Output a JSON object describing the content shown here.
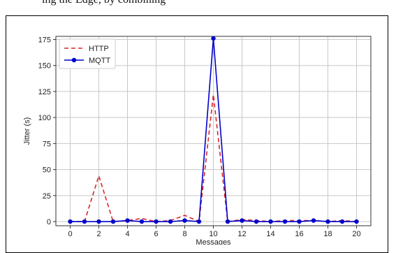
{
  "caption_fragment": "ing the Edge, by combining",
  "chart_data": {
    "type": "line",
    "x": [
      0,
      1,
      2,
      3,
      4,
      5,
      6,
      7,
      8,
      9,
      10,
      11,
      12,
      13,
      14,
      15,
      16,
      17,
      18,
      19,
      20
    ],
    "series": [
      {
        "name": "HTTP",
        "color": "#d62728",
        "style": "dashed",
        "marker": "none",
        "values": [
          0,
          0,
          44,
          0,
          1,
          3,
          0,
          1,
          6,
          0,
          122,
          0,
          2,
          1,
          0,
          1,
          1,
          1,
          0,
          1,
          0
        ]
      },
      {
        "name": "MQTT",
        "color": "#0000cc",
        "style": "solid",
        "marker": "circle",
        "values": [
          0,
          0,
          0,
          0,
          1,
          0,
          0,
          0,
          1,
          0,
          176,
          0,
          1,
          0,
          0,
          0,
          0,
          1,
          0,
          0,
          0
        ]
      }
    ],
    "xlabel": "Messages",
    "ylabel": "Jitter (s)",
    "xticks": [
      0,
      2,
      4,
      6,
      8,
      10,
      12,
      14,
      16,
      18,
      20
    ],
    "yticks": [
      0,
      25,
      50,
      75,
      100,
      125,
      150,
      175
    ],
    "xlim": [
      -1,
      21
    ],
    "ylim": [
      -4,
      178
    ],
    "grid": true,
    "legend_position": "top-left"
  }
}
